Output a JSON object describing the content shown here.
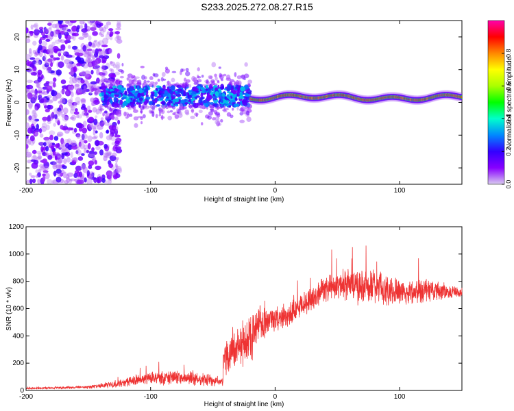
{
  "title": "S233.2025.272.08.27.R15",
  "chart_data": [
    {
      "type": "heatmap",
      "xlabel": "Height of straight line (km)",
      "ylabel": "Frequency (Hz)",
      "xlim": [
        -200,
        150
      ],
      "ylim": [
        -25,
        25
      ],
      "x_ticks": [
        -200,
        -100,
        0,
        100
      ],
      "y_ticks": [
        -20,
        -10,
        0,
        10,
        20
      ],
      "x_tick_labels": [
        "-200",
        "-100",
        "0",
        "100"
      ],
      "y_tick_labels": [
        "-20",
        "-10",
        "0",
        "10",
        "20"
      ],
      "colorbar": {
        "label": "Normalized spectral amplitude",
        "range": [
          0,
          1
        ],
        "ticks": [
          0.0,
          0.2,
          0.4,
          0.6,
          0.8
        ],
        "tick_labels": [
          "0.0",
          "0.2",
          "0.4",
          "0.6",
          "0.8"
        ],
        "colors": [
          "#d9ccef",
          "#8800ff",
          "#3300ff",
          "#0088ff",
          "#00ffcc",
          "#00ff00",
          "#aaff00",
          "#ffff00",
          "#ff8800",
          "#ff0000",
          "#ff00aa"
        ]
      },
      "ridge": {
        "description_regions": [
          {
            "x_range": [
              -200,
              -140
            ],
            "amplitude": "low",
            "frequency_spread": [
              -25,
              25
            ]
          },
          {
            "x_range": [
              -140,
              -20
            ],
            "amplitude": "medium",
            "frequency_center": 2,
            "frequency_spread": [
              -10,
              10
            ]
          },
          {
            "x_range": [
              -20,
              150
            ],
            "amplitude": "high",
            "frequency_center": 1.5,
            "frequency_spread": [
              0,
              3
            ]
          }
        ]
      }
    },
    {
      "type": "line",
      "xlabel": "Height of straight line (km)",
      "ylabel": "SNR (10 * v/v)",
      "xlim": [
        -200,
        150
      ],
      "ylim": [
        0,
        1200
      ],
      "x_ticks": [
        -200,
        -100,
        0,
        100
      ],
      "y_ticks": [
        0,
        200,
        400,
        600,
        800,
        1000,
        1200
      ],
      "x_tick_labels": [
        "-200",
        "-100",
        "0",
        "100"
      ],
      "y_tick_labels": [
        "0",
        "200",
        "400",
        "600",
        "800",
        "1000",
        "1200"
      ],
      "color": "#ee3333",
      "series": [
        {
          "name": "SNR",
          "envelope_x": [
            -200,
            -170,
            -150,
            -130,
            -110,
            -90,
            -70,
            -50,
            -42,
            -41,
            -30,
            -20,
            -15,
            -10,
            0,
            10,
            20,
            30,
            40,
            50,
            60,
            70,
            80,
            90,
            100,
            110,
            120,
            130,
            140,
            150
          ],
          "envelope_y": [
            15,
            20,
            25,
            45,
            80,
            90,
            95,
            70,
            60,
            250,
            320,
            380,
            480,
            500,
            520,
            560,
            620,
            680,
            740,
            770,
            780,
            760,
            770,
            740,
            720,
            720,
            740,
            730,
            720,
            720
          ],
          "noise_amplitude": [
            10,
            10,
            15,
            30,
            50,
            60,
            60,
            50,
            40,
            150,
            200,
            220,
            200,
            150,
            120,
            100,
            100,
            100,
            110,
            120,
            140,
            160,
            140,
            130,
            120,
            110,
            110,
            90,
            60,
            50
          ]
        }
      ]
    }
  ]
}
